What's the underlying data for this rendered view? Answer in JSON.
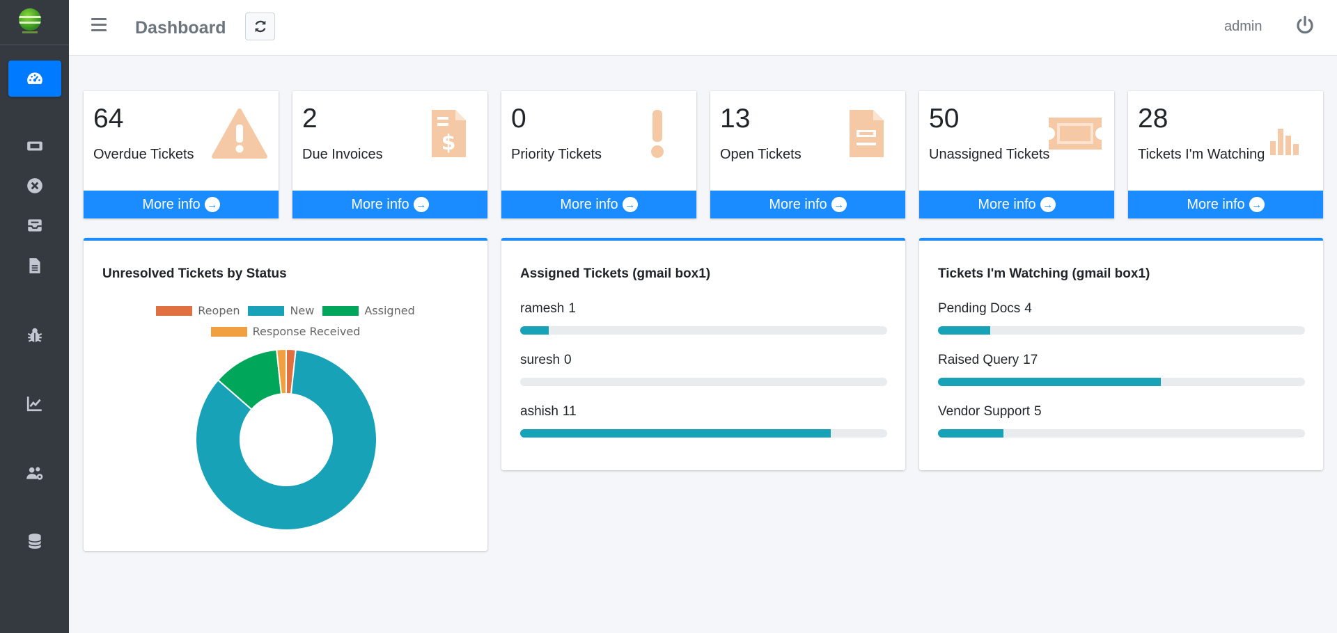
{
  "header": {
    "title": "Dashboard",
    "user": "admin"
  },
  "sidebar": {
    "items": [
      {
        "icon": "dashboard-icon",
        "active": true
      },
      {
        "icon": "ticket-icon"
      },
      {
        "icon": "close-circle-icon"
      },
      {
        "icon": "inbox-icon"
      },
      {
        "icon": "document-icon"
      },
      {
        "icon": "bug-icon"
      },
      {
        "icon": "chart-line-icon"
      },
      {
        "icon": "users-cog-icon"
      },
      {
        "icon": "database-icon"
      }
    ]
  },
  "info_boxes": [
    {
      "value": "64",
      "label": "Overdue Tickets",
      "link": "More info",
      "icon": "warning-icon"
    },
    {
      "value": "2",
      "label": "Due Invoices",
      "link": "More info",
      "icon": "invoice-icon"
    },
    {
      "value": "0",
      "label": "Priority Tickets",
      "link": "More info",
      "icon": "exclamation-icon"
    },
    {
      "value": "13",
      "label": "Open Tickets",
      "link": "More info",
      "icon": "file-icon"
    },
    {
      "value": "50",
      "label": "Unassigned Tickets",
      "link": "More info",
      "icon": "ticket-icon"
    },
    {
      "value": "28",
      "label": "Tickets I'm Watching",
      "link": "More info",
      "icon": "bar-chart-icon"
    }
  ],
  "status_card": {
    "title": "Unresolved Tickets by Status",
    "legend": [
      "Reopen",
      "New",
      "Assigned",
      "Response Received"
    ]
  },
  "chart_data": {
    "type": "pie",
    "variant": "doughnut",
    "labels": [
      "Reopen",
      "New",
      "Assigned",
      "Response Received"
    ],
    "values": [
      1,
      50,
      7,
      1
    ],
    "colors": [
      "#e07040",
      "#17a2b8",
      "#00a65a",
      "#f0a040"
    ]
  },
  "assigned_card": {
    "title": "Assigned Tickets (gmail box1)",
    "max": 13,
    "rows": [
      {
        "name": "ramesh",
        "count": "1",
        "value": 1
      },
      {
        "name": "suresh",
        "count": "0",
        "value": 0
      },
      {
        "name": "ashish",
        "count": "11",
        "value": 11
      }
    ]
  },
  "watching_card": {
    "title": "Tickets I'm Watching (gmail box1)",
    "max": 28,
    "rows": [
      {
        "name": "Pending Docs",
        "count": "4",
        "value": 4
      },
      {
        "name": "Raised Query",
        "count": "17",
        "value": 17
      },
      {
        "name": "Vendor Support",
        "count": "5",
        "value": 5
      }
    ]
  },
  "colors": {
    "accent": "#1a8cff",
    "sidebar": "#343a40",
    "icon_faded": "#f5c9a5",
    "progress": "#17a2b8"
  }
}
